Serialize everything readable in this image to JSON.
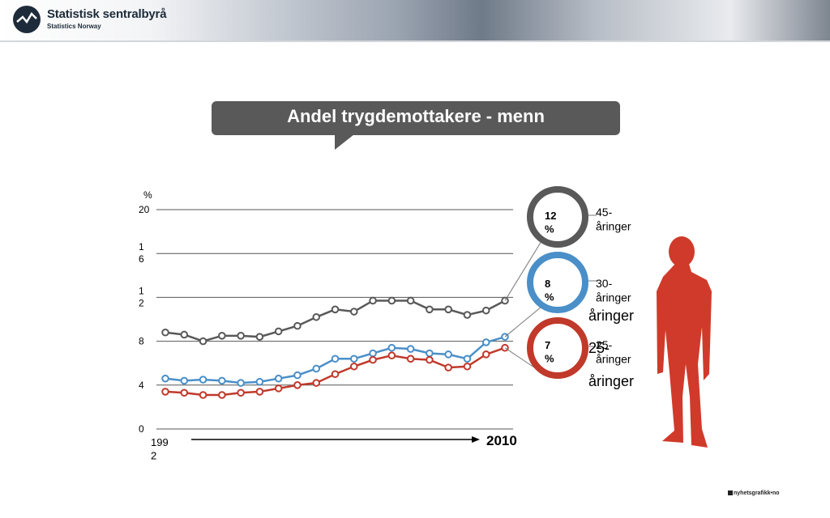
{
  "header": {
    "org_name": "Statistisk sentralbyrå",
    "org_sub": "Statistics Norway"
  },
  "footer": {
    "credit": "nyhetsgrafikk•no"
  },
  "colors": {
    "men45": "#595959",
    "men30": "#4a8fc8",
    "men25": "#c0392b",
    "figure": "#d03a2a",
    "title_bg": "#595959"
  },
  "chart_data": {
    "type": "line",
    "title": "Andel trygdemottakere - menn",
    "ylabel": "%",
    "ylim": [
      0,
      20
    ],
    "ytick_labels": [
      "0",
      "4",
      "8",
      "1\n2",
      "1\n6",
      "20"
    ],
    "yticks": [
      0,
      4,
      8,
      12,
      16,
      20
    ],
    "x_start_label": "199\n2",
    "x_end_label": "2010",
    "x": [
      1992,
      1993,
      1994,
      1995,
      1996,
      1997,
      1998,
      1999,
      2000,
      2001,
      2002,
      2003,
      2004,
      2005,
      2006,
      2007,
      2008,
      2009,
      2010
    ],
    "series": [
      {
        "name": "45-åringer",
        "badge": "12\n%",
        "color": "#595959",
        "values": [
          8.8,
          8.6,
          8.0,
          8.5,
          8.5,
          8.4,
          8.9,
          9.4,
          10.2,
          10.9,
          10.7,
          11.7,
          11.7,
          11.7,
          10.9,
          10.9,
          10.4,
          10.8,
          11.7
        ]
      },
      {
        "name": "30-åringer",
        "badge": "8\n%",
        "color": "#4a8fc8",
        "values": [
          4.6,
          4.4,
          4.5,
          4.4,
          4.2,
          4.3,
          4.6,
          4.9,
          5.5,
          6.4,
          6.4,
          6.9,
          7.4,
          7.3,
          6.9,
          6.8,
          6.4,
          7.9,
          8.4
        ]
      },
      {
        "name": "25-åringer",
        "badge": "7\n%",
        "color": "#c0392b",
        "values": [
          3.4,
          3.3,
          3.1,
          3.1,
          3.3,
          3.4,
          3.7,
          4.0,
          4.2,
          5.0,
          5.7,
          6.3,
          6.7,
          6.4,
          6.3,
          5.6,
          5.7,
          6.8,
          7.4
        ]
      }
    ],
    "overlay_labels": [
      "åringer",
      "25-",
      "åringer"
    ]
  }
}
